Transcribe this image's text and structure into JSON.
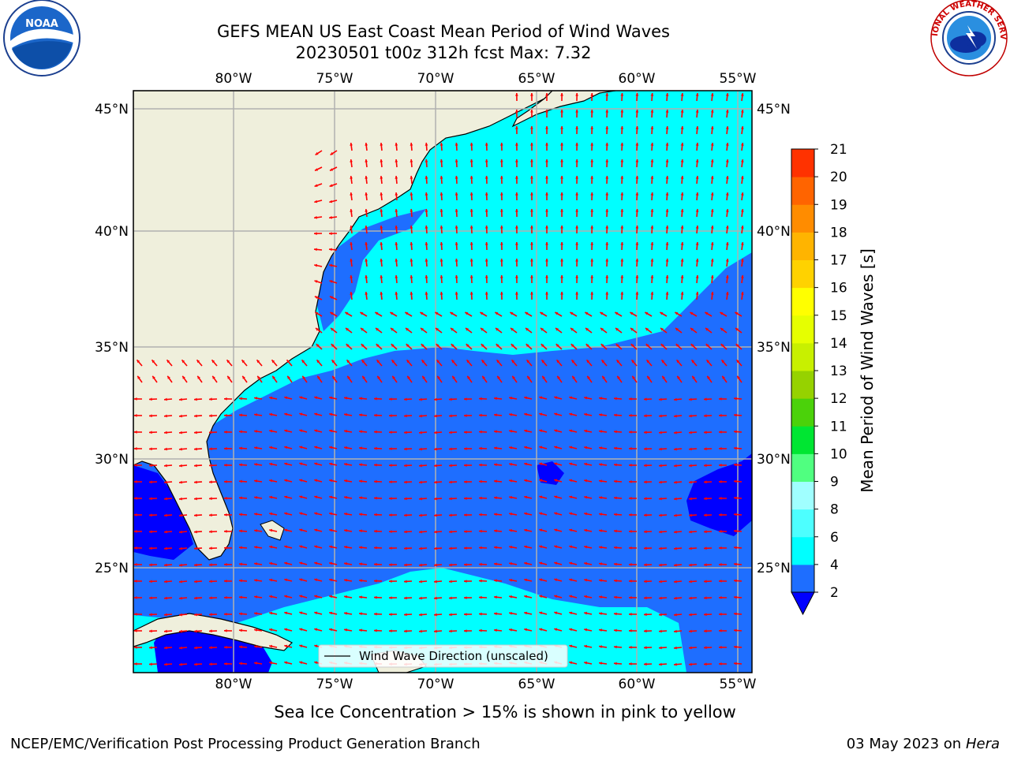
{
  "title": "GEFS MEAN US East Coast Mean Period of Wind Waves",
  "subtitle": "20230501 t00z 312h fcst   Max: 7.32",
  "note": "Sea Ice Concentration > 15% is shown in pink to yellow",
  "credit": "NCEP/EMC/Verification Post Processing Product Generation Branch",
  "date": "03 May 2023 on",
  "host": "Hera",
  "legend_label": "Wind Wave Direction (unscaled)",
  "colorbar": {
    "label": "Mean Period of Wind Waves [s]",
    "ticks": [
      "2",
      "4",
      "6",
      "8",
      "9",
      "10",
      "11",
      "12",
      "13",
      "14",
      "15",
      "16",
      "17",
      "18",
      "19",
      "20",
      "21"
    ],
    "colors": [
      "#1e6eff",
      "#00ffff",
      "#4dffff",
      "#a0ffff",
      "#50ff80",
      "#00e632",
      "#4bd20a",
      "#96d200",
      "#c8f000",
      "#e6ff00",
      "#ffff00",
      "#ffd200",
      "#ffb400",
      "#ff8c00",
      "#ff6400",
      "#ff3200",
      "#ff0000"
    ],
    "under_color": "#0000ff"
  },
  "lon_labels": [
    "80°W",
    "75°W",
    "70°W",
    "65°W",
    "60°W",
    "55°W"
  ],
  "lat_labels": [
    "45°N",
    "40°N",
    "35°N",
    "30°N",
    "25°N"
  ],
  "colors": {
    "land": "#efefdc",
    "arrow": "#ff0000",
    "grid": "#b0b0b0"
  },
  "logos": {
    "noaa": "NOAA",
    "nws": "NATIONAL WEATHER SERVICE"
  }
}
